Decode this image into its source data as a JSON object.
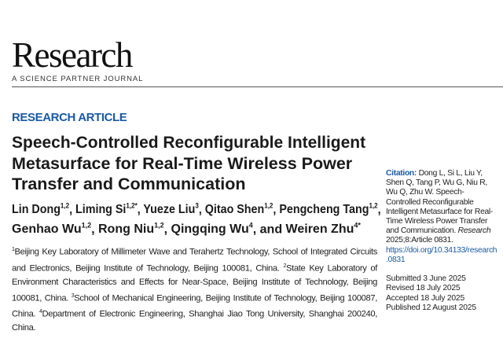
{
  "journal": {
    "logo": "Research",
    "tagline": "A SCIENCE PARTNER JOURNAL"
  },
  "article_type": "RESEARCH ARTICLE",
  "title_lines": [
    "Speech-Controlled Reconfigurable Intelligent",
    "Metasurface for Real-Time Wireless Power",
    "Transfer and Communication"
  ],
  "authors": [
    {
      "name": "Lin Dong",
      "sup": "1,2"
    },
    {
      "name": "Liming Si",
      "sup": "1,2*"
    },
    {
      "name": "Yueze Liu",
      "sup": "3"
    },
    {
      "name": "Qitao Shen",
      "sup": "1,2"
    },
    {
      "name": "Pengcheng Tang",
      "sup": "1,2"
    },
    {
      "name": "Genhao Wu",
      "sup": "1,2"
    },
    {
      "name": "Rong Niu",
      "sup": "1,2"
    },
    {
      "name": "Qingqing Wu",
      "sup": "4"
    },
    {
      "name": "Weiren Zhu",
      "sup": "4*"
    }
  ],
  "and_word": "and",
  "affiliations": [
    {
      "num": "1",
      "text": "Beijing Key Laboratory of Millimeter Wave and Terahertz Technology, School of Integrated Circuits and Electronics, Beijing Institute of Technology, Beijing 100081, China. "
    },
    {
      "num": "2",
      "text": "State Key Laboratory of Environment Characteristics and Effects for Near-Space, Beijing Institute of Technology, Beijing 100081, China. "
    },
    {
      "num": "3",
      "text": "School of Mechanical Engineering, Beijing Institute of Technology, Beijing 100087, China. "
    },
    {
      "num": "4",
      "text": "Department of Electronic Engineering, Shanghai Jiao Tong University, Shanghai 200240, China."
    }
  ],
  "citation": {
    "label": "Citation:",
    "text": " Dong L, Si L, Liu Y, Shen Q, Tang P, Wu G, Niu R, Wu Q, Zhu W. Speech-Controlled Reconfigurable Intelligent Metasurface for Real-Time Wireless Power Transfer and Communication. ",
    "journal": "Research",
    "ref": " 2025;8:Article 0831. ",
    "doi": "https://doi.org/10.34133/research.0831"
  },
  "dates": [
    "Submitted 3 June 2025",
    "Revised 18 July 2025",
    "Accepted 18 July 2025",
    "Published 12 August 2025"
  ],
  "colors": {
    "accent": "#1b5aa6"
  }
}
